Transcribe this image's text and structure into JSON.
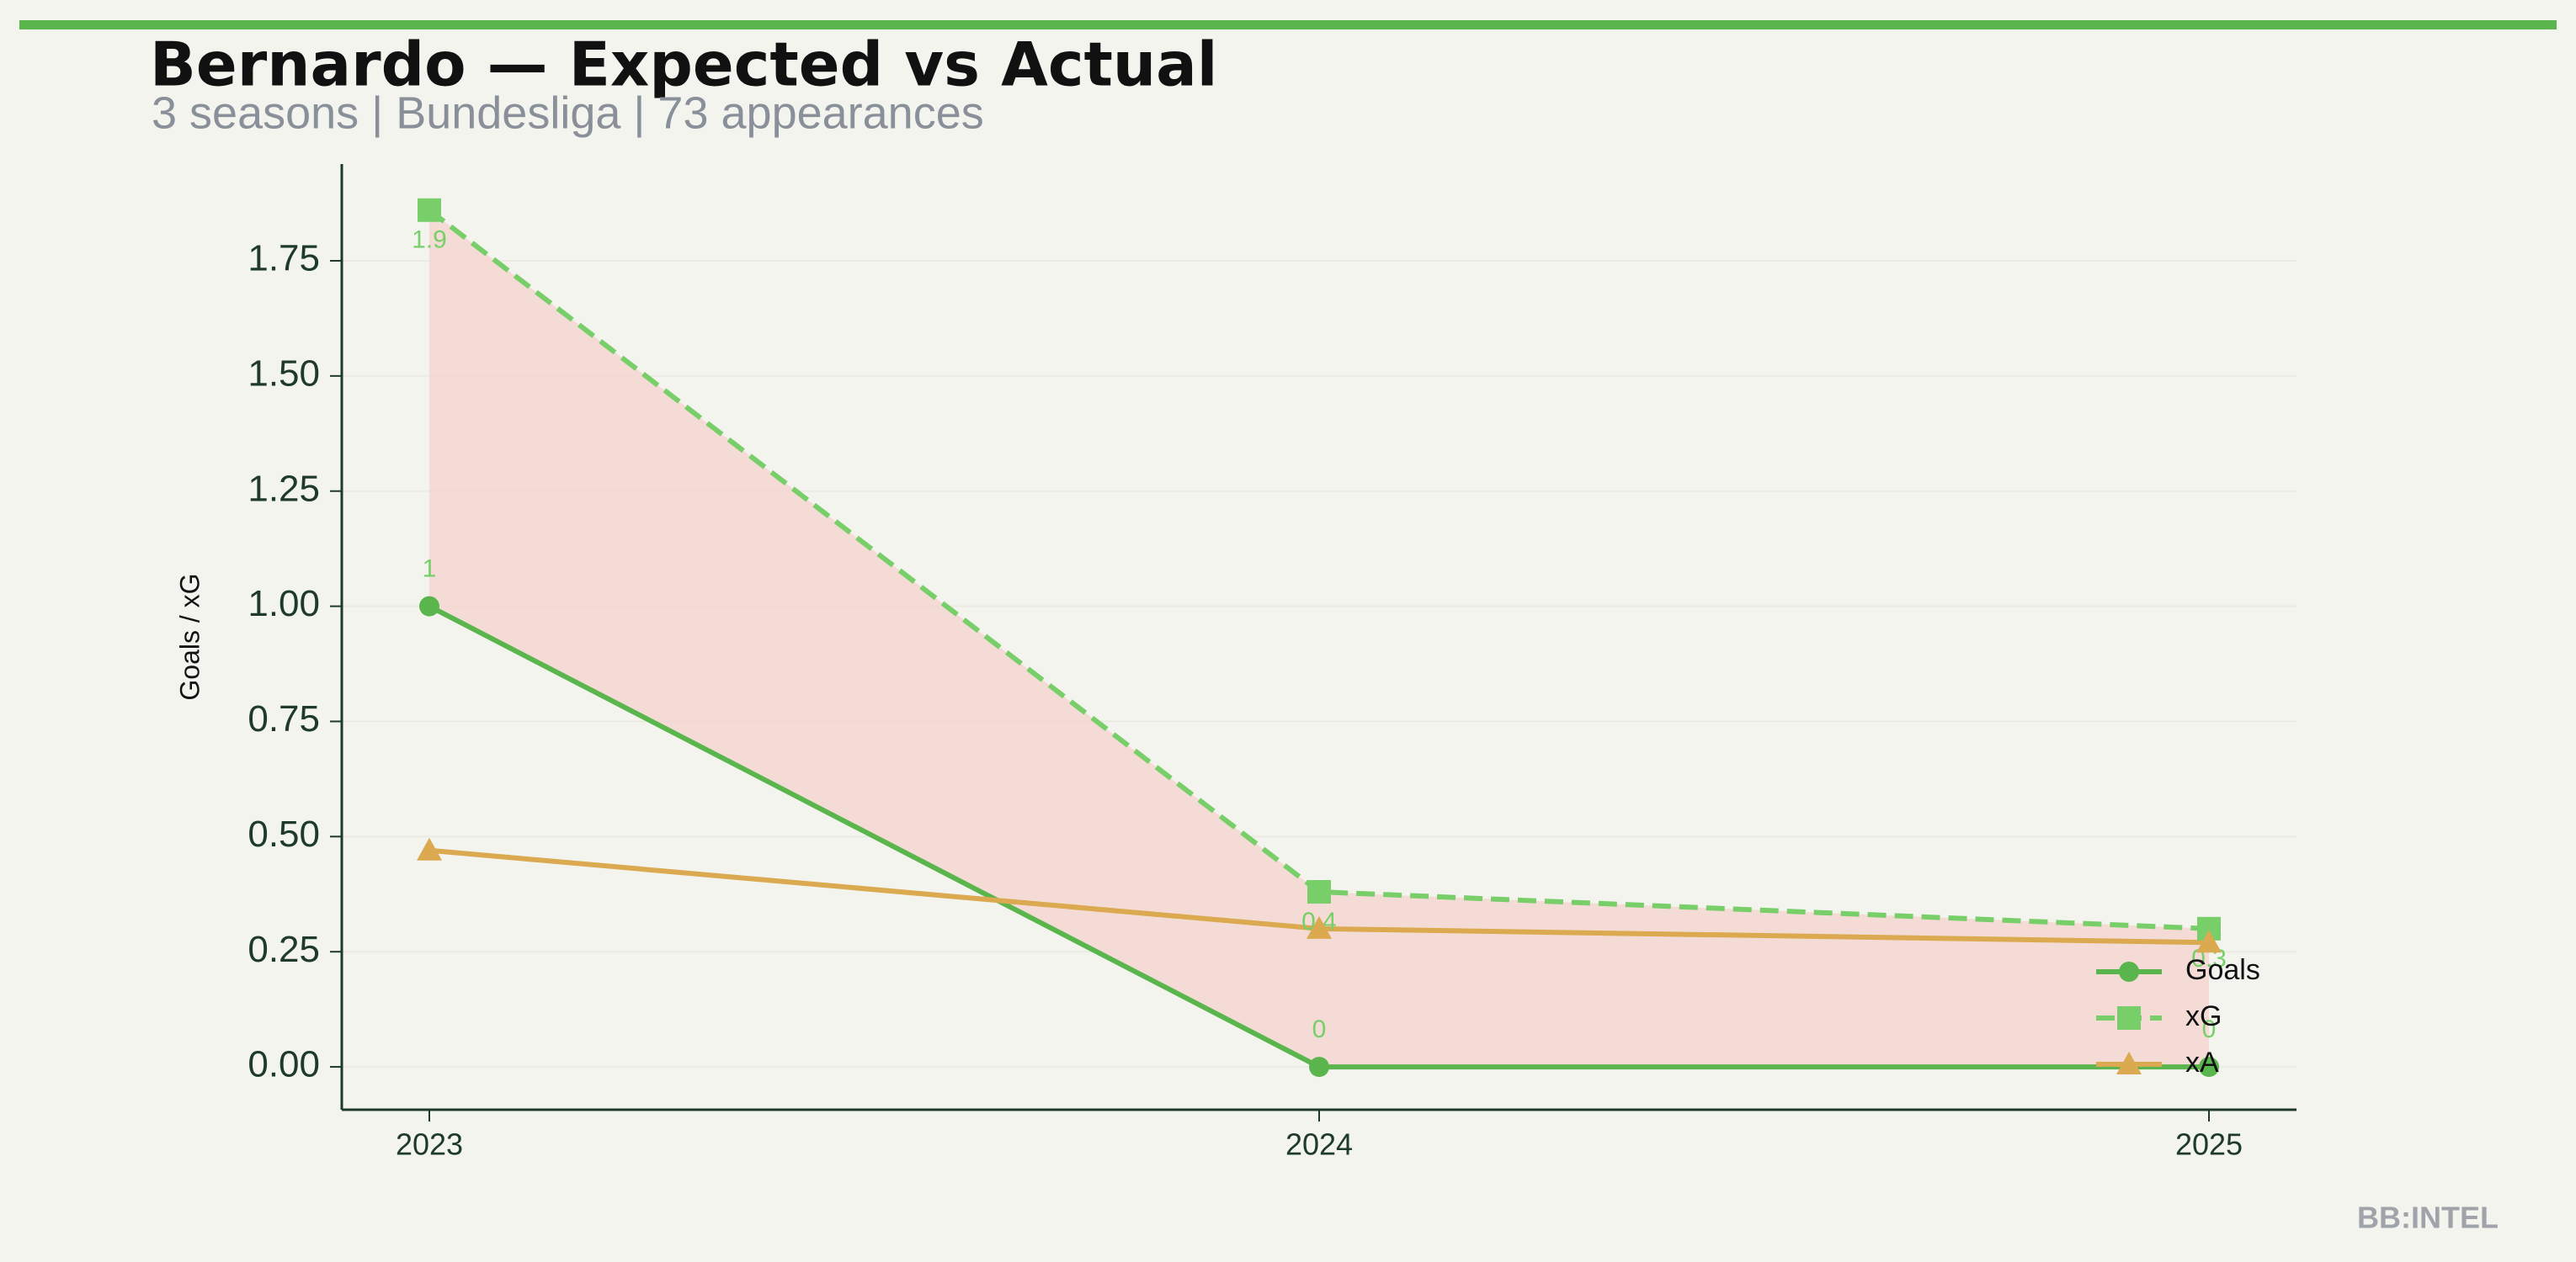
{
  "chart_data": {
    "type": "line",
    "title": "Bernardo — Expected vs Actual",
    "subtitle": "3 seasons | Bundesliga | 73 appearances",
    "y_label": "Goals / xG",
    "categories": [
      "2023",
      "2024",
      "2025"
    ],
    "series": [
      {
        "name": "Goals",
        "color": "#5ab54c",
        "marker": "circle",
        "linestyle": "solid",
        "data_labels": true,
        "values": [
          1,
          0,
          0
        ]
      },
      {
        "name": "xG",
        "color": "#78cf69",
        "marker": "square",
        "linestyle": "dashed",
        "data_labels": true,
        "values": [
          1.86,
          0.38,
          0.3
        ],
        "value_labels": [
          "1.9",
          "0.4",
          "0.3"
        ]
      },
      {
        "name": "xA",
        "color": "#dba94f",
        "marker": "triangle",
        "linestyle": "solid",
        "data_labels": false,
        "values": [
          0.47,
          0.3,
          0.27
        ]
      }
    ],
    "fill_between": [
      0,
      1
    ],
    "fill_color": "#f5d6d1",
    "ylim": [
      -0.093,
      1.96
    ],
    "yticks": [
      {
        "value": 0,
        "label": "0.00"
      },
      {
        "value": 0.25,
        "label": "0.25"
      },
      {
        "value": 0.5,
        "label": "0.50"
      },
      {
        "value": 0.75,
        "label": "0.75"
      },
      {
        "value": 1,
        "label": "1.00"
      },
      {
        "value": 1.25,
        "label": "1.25"
      },
      {
        "value": 1.5,
        "label": "1.50"
      },
      {
        "value": 1.75,
        "label": "1.75"
      }
    ],
    "grid": true,
    "legend": "lower right",
    "watermark": "BB:INTEL"
  }
}
